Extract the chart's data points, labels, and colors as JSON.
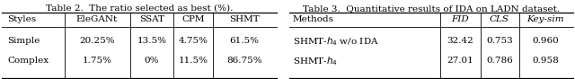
{
  "table1": {
    "title": "Table 2.  The ratio selected as best (%).",
    "headers": [
      "Styles",
      "EleGANt",
      "SSAT",
      "CPM",
      "SHMT"
    ],
    "rows": [
      [
        "Simple",
        "20.25%",
        "13.5%",
        "4.75%",
        "61.5%"
      ],
      [
        "Complex",
        "1.75%",
        "0%",
        "11.5%",
        "86.75%"
      ]
    ]
  },
  "table2": {
    "title": "Table 3.  Quantitative results of IDA on LADN dataset.",
    "headers": [
      "Methods",
      "FID",
      "CLS",
      "Key-sim"
    ],
    "rows": [
      [
        "SHMT-$h_4$ w/o IDA",
        "32.42",
        "0.753",
        "0.960"
      ],
      [
        "SHMT-$h_4$",
        "27.01",
        "0.786",
        "0.958"
      ]
    ]
  }
}
